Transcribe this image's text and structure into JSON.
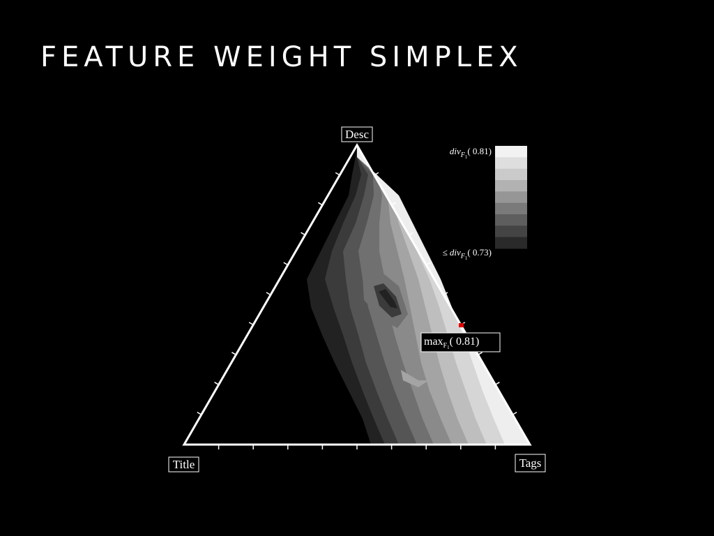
{
  "slide": {
    "title": "FEATURE WEIGHT SIMPLEX"
  },
  "chart_data": {
    "type": "heatmap",
    "subtype": "ternary-contour",
    "vertices": {
      "top": "Desc",
      "left": "Title",
      "right": "Tags"
    },
    "ticks_per_side": 10,
    "grid": false,
    "colormap": "grayscale",
    "levels": [
      "#000000",
      "#222222",
      "#3b3b3b",
      "#555555",
      "#707070",
      "#8a8a8a",
      "#a4a4a4",
      "#bebebe",
      "#d6d6d6",
      "#eeeeee"
    ],
    "legend": {
      "placement": "top-right",
      "max_prefix": "div",
      "max_sub": "F",
      "max_subsub": "1",
      "max_value": "( 0.81)",
      "min_symbol": "≤",
      "min_prefix": "div",
      "min_sub": "F",
      "min_subsub": "1",
      "min_value": "( 0.73)",
      "swatches": [
        "#f2f2f2",
        "#dedede",
        "#cacaca",
        "#b2b2b2",
        "#969696",
        "#7a7a7a",
        "#5e5e5e",
        "#444444",
        "#2a2a2a"
      ]
    },
    "annotation": {
      "prefix": "max",
      "sub": "F",
      "subsub": "1",
      "value": "( 0.81)",
      "marker_color": "#e00000",
      "weights": {
        "Title": 0.0,
        "Desc": 0.4,
        "Tags": 0.6
      }
    }
  }
}
